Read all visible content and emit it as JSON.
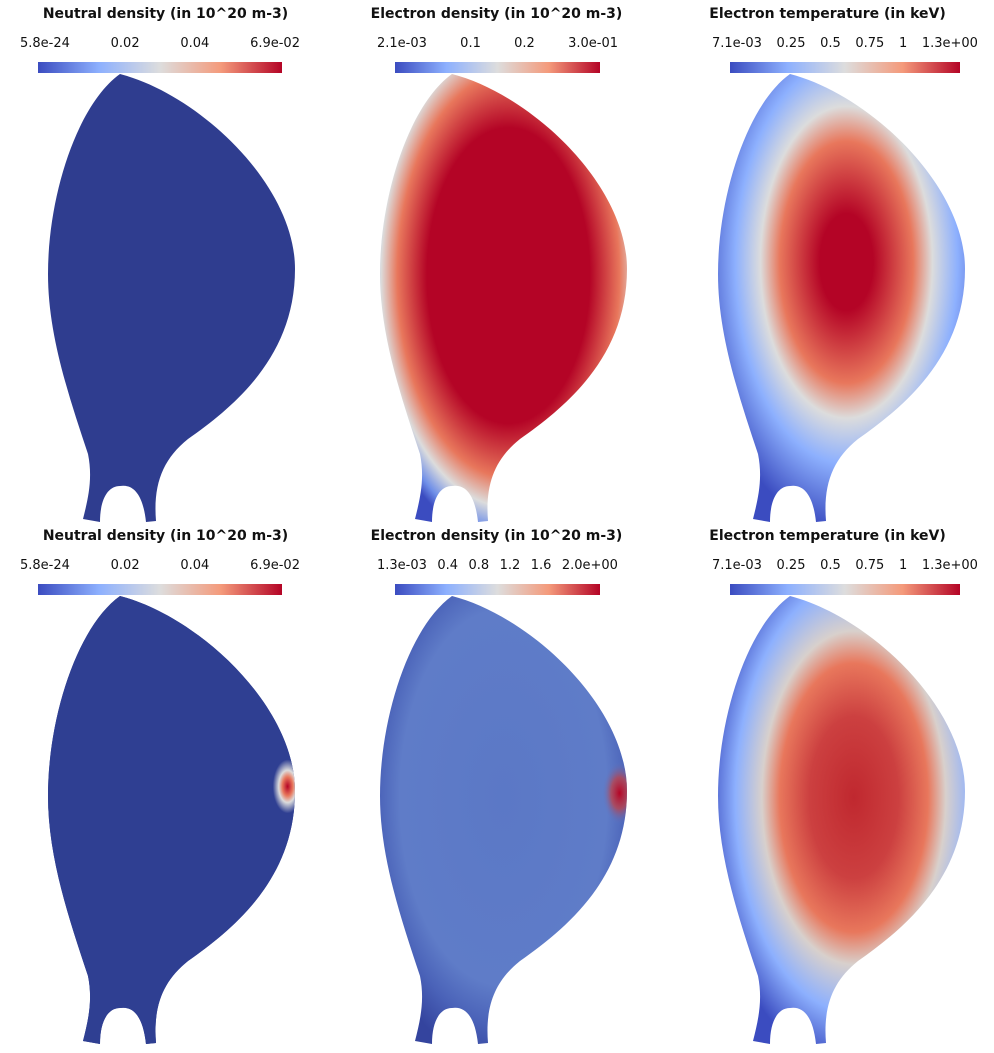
{
  "panels": [
    {
      "title": "Neutral density (in 10^20 m-3)",
      "ticks": [
        "5.8e-24",
        "0.02",
        "0.04",
        "6.9e-02"
      ]
    },
    {
      "title": "Electron density (in 10^20 m-3)",
      "ticks": [
        "2.1e-03",
        "0.1",
        "0.2",
        "3.0e-01"
      ]
    },
    {
      "title": "Electron temperature (in keV)",
      "ticks": [
        "7.1e-03",
        "0.25",
        "0.5",
        "0.75",
        "1",
        "1.3e+00"
      ]
    },
    {
      "title": "Neutral density (in 10^20 m-3)",
      "ticks": [
        "5.8e-24",
        "0.02",
        "0.04",
        "6.9e-02"
      ]
    },
    {
      "title": "Electron density (in 10^20 m-3)",
      "ticks": [
        "1.3e-03",
        "0.4",
        "0.8",
        "1.2",
        "1.6",
        "2.0e+00"
      ]
    },
    {
      "title": "Electron temperature (in keV)",
      "ticks": [
        "7.1e-03",
        "0.25",
        "0.5",
        "0.75",
        "1",
        "1.3e+00"
      ]
    }
  ]
}
